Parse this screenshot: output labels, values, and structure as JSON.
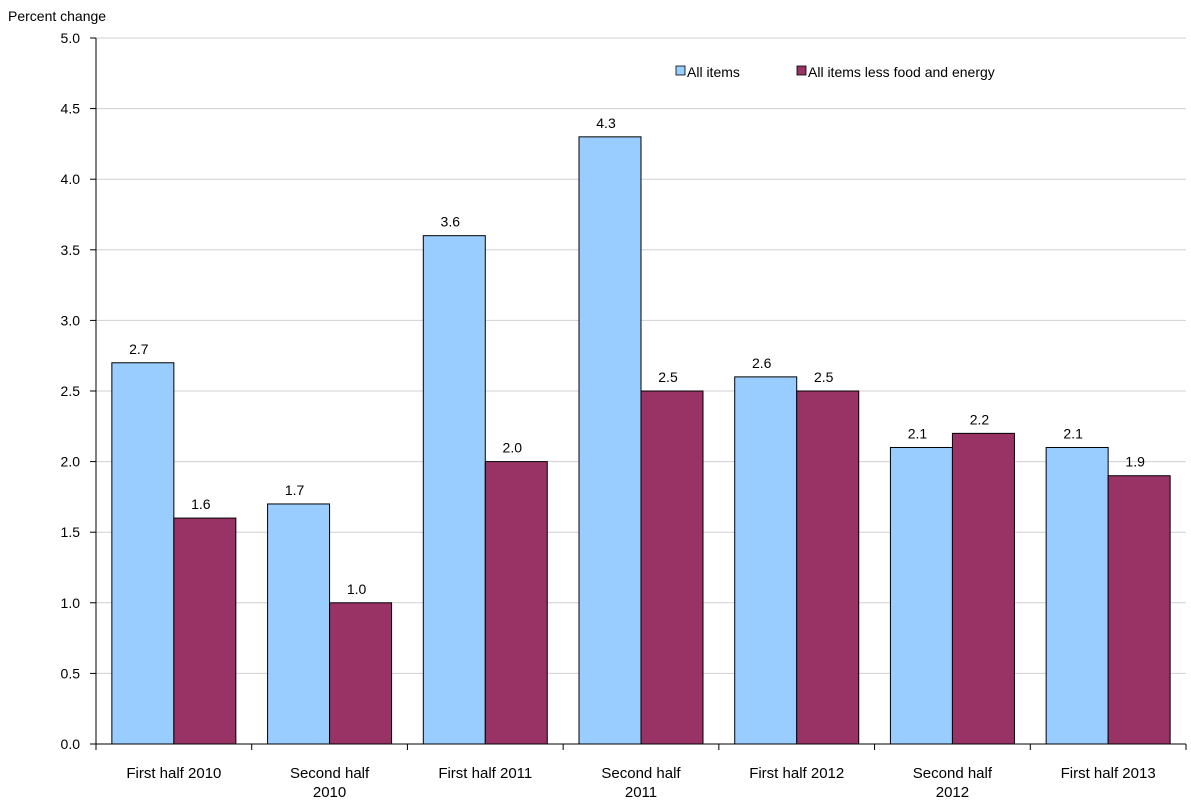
{
  "chart_data": {
    "type": "bar",
    "y_axis_title": "Percent change",
    "categories": [
      [
        "First half 2010"
      ],
      [
        "Second half",
        "2010"
      ],
      [
        "First half 2011"
      ],
      [
        "Second half",
        "2011"
      ],
      [
        "First half 2012"
      ],
      [
        "Second half",
        "2012"
      ],
      [
        "First half 2013"
      ]
    ],
    "series": [
      {
        "name": "All items",
        "color": "#99ccff",
        "values": [
          2.7,
          1.7,
          3.6,
          4.3,
          2.6,
          2.1,
          2.1
        ]
      },
      {
        "name": "All items less food and energy",
        "color": "#993366",
        "values": [
          1.6,
          1.0,
          2.0,
          2.5,
          2.5,
          2.2,
          1.9
        ]
      }
    ],
    "data_labels": [
      [
        "2.7",
        "1.7",
        "3.6",
        "4.3",
        "2.6",
        "2.1",
        "2.1"
      ],
      [
        "1.6",
        "1.0",
        "2.0",
        "2.5",
        "2.5",
        "2.2",
        "1.9"
      ]
    ],
    "ylim": [
      0,
      5
    ],
    "yticks": [
      "0.0",
      "0.5",
      "1.0",
      "1.5",
      "2.0",
      "2.5",
      "3.0",
      "3.5",
      "4.0",
      "4.5",
      "5.0"
    ],
    "ytick_values": [
      0,
      0.5,
      1,
      1.5,
      2,
      2.5,
      3,
      3.5,
      4,
      4.5,
      5
    ],
    "grid": true,
    "legend_position": "top-right"
  }
}
